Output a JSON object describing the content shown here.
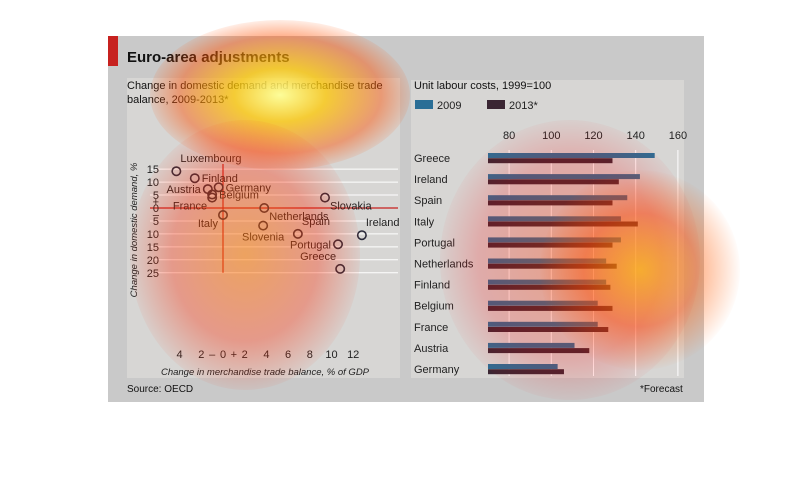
{
  "title": "Euro-area adjustments",
  "source": "Source: OECD",
  "footnote": "*Forecast",
  "chart_data": [
    {
      "type": "scatter",
      "title": "Change in domestic demand and merchandise trade balance, 2009-2013*",
      "title_lines": [
        "Change in domestic demand and merchandise trade",
        "balance, 2009-2013*"
      ],
      "xlabel": "Change in merchandise trade balance, % of GDP",
      "ylabel": "Change in domestic demand, %",
      "xlim": [
        -5,
        13
      ],
      "ylim": [
        -25,
        17
      ],
      "x_ticks": [
        {
          "value": -4,
          "label": "4"
        },
        {
          "value": -2,
          "label": "2"
        },
        {
          "value": -1,
          "label": "–"
        },
        {
          "value": 0,
          "label": "0"
        },
        {
          "value": 1,
          "label": "+"
        },
        {
          "value": 2,
          "label": "2"
        },
        {
          "value": 4,
          "label": "4"
        },
        {
          "value": 6,
          "label": "6"
        },
        {
          "value": 8,
          "label": "8"
        },
        {
          "value": 10,
          "label": "10"
        },
        {
          "value": 12,
          "label": "12"
        }
      ],
      "y_ticks": [
        {
          "value": 15,
          "label": "15"
        },
        {
          "value": 10,
          "label": "10"
        },
        {
          "value": 5,
          "label": "5"
        },
        {
          "value": 2.5,
          "label": "+"
        },
        {
          "value": 0,
          "label": "0"
        },
        {
          "value": -2.5,
          "label": "–"
        },
        {
          "value": -5,
          "label": "5"
        },
        {
          "value": -10,
          "label": "10"
        },
        {
          "value": -15,
          "label": "15"
        },
        {
          "value": -20,
          "label": "20"
        },
        {
          "value": -25,
          "label": "25"
        }
      ],
      "points": [
        {
          "label": "Luxembourg",
          "x": -4.3,
          "y": 14.2,
          "anchor": "right-up"
        },
        {
          "label": "Finland",
          "x": -2.6,
          "y": 11.5,
          "anchor": "right"
        },
        {
          "label": "Austria",
          "x": -1.4,
          "y": 7.3,
          "anchor": "left"
        },
        {
          "label": "Germany",
          "x": -0.4,
          "y": 8.0,
          "anchor": "right"
        },
        {
          "label": "Belgium",
          "x": -1.0,
          "y": 5.2,
          "anchor": "right"
        },
        {
          "label": "France",
          "x": -1.0,
          "y": 4.0,
          "anchor": "left-down"
        },
        {
          "label": "Slovakia",
          "x": 9.4,
          "y": 4.0,
          "anchor": "right-down"
        },
        {
          "label": "Netherlands",
          "x": 3.8,
          "y": 0.0,
          "anchor": "right-down"
        },
        {
          "label": "Italy",
          "x": 0.0,
          "y": -2.7,
          "anchor": "left-down"
        },
        {
          "label": "Slovenia",
          "x": 3.7,
          "y": -6.8,
          "anchor": "down"
        },
        {
          "label": "Spain",
          "x": 6.9,
          "y": -10.0,
          "anchor": "right-up"
        },
        {
          "label": "Ireland",
          "x": 12.8,
          "y": -10.5,
          "anchor": "right-up"
        },
        {
          "label": "Portugal",
          "x": 10.6,
          "y": -14.0,
          "anchor": "left"
        },
        {
          "label": "Greece",
          "x": 10.8,
          "y": -23.5,
          "anchor": "left-up"
        }
      ]
    },
    {
      "type": "bar",
      "orientation": "horizontal",
      "title": "Unit labour costs, 1999=100",
      "xlim": [
        70,
        160
      ],
      "x_ticks": [
        80,
        100,
        120,
        140,
        160
      ],
      "grid": true,
      "categories": [
        "Greece",
        "Ireland",
        "Spain",
        "Italy",
        "Portugal",
        "Netherlands",
        "Finland",
        "Belgium",
        "France",
        "Austria",
        "Germany"
      ],
      "series": [
        {
          "name": "2009",
          "color": "#2a6e96",
          "values": [
            149,
            142,
            136,
            133,
            133,
            126,
            126,
            122,
            122,
            111,
            103
          ]
        },
        {
          "name": "2013*",
          "color": "#3a2633",
          "values": [
            129,
            132,
            129,
            141,
            129,
            131,
            128,
            129,
            127,
            118,
            106
          ]
        }
      ]
    }
  ]
}
